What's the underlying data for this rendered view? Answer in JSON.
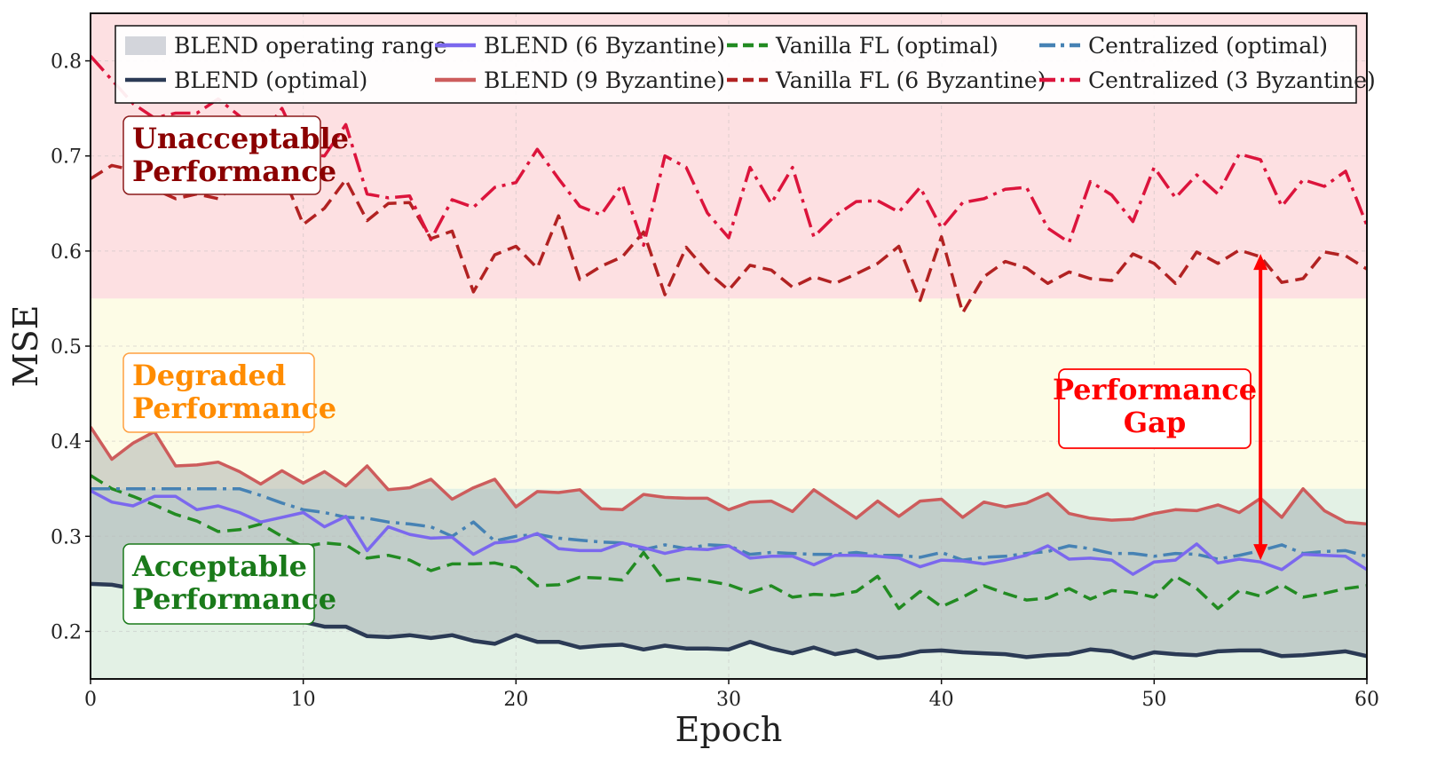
{
  "chart_data": {
    "type": "line",
    "xlabel": "Epoch",
    "ylabel": "MSE",
    "xlim": [
      0,
      60
    ],
    "ylim": [
      0.15,
      0.85
    ],
    "x_ticks": [
      0,
      10,
      20,
      30,
      40,
      50,
      60
    ],
    "y_ticks": [
      0.2,
      0.3,
      0.4,
      0.5,
      0.6,
      0.7,
      0.8
    ],
    "zones": [
      {
        "name": "Unacceptable Performance",
        "label_line1": "Unacceptable",
        "label_line2": "Performance",
        "y_range": [
          0.55,
          0.85
        ],
        "fill": "#fde0e2",
        "text_color": "#8b0000",
        "border": "#8b1a1a"
      },
      {
        "name": "Degraded Performance",
        "label_line1": "Degraded",
        "label_line2": "Performance",
        "y_range": [
          0.35,
          0.55
        ],
        "fill": "#fdfce6",
        "text_color": "#ff8c00",
        "border": "#ffa040"
      },
      {
        "name": "Acceptable Performance",
        "label_line1": "Acceptable",
        "label_line2": "Performance",
        "y_range": [
          0.15,
          0.35
        ],
        "fill": "#e3f1e5",
        "text_color": "#1a7a1a",
        "border": "#1a7a1a"
      }
    ],
    "annotation": {
      "line1": "Performance",
      "line2": "Gap",
      "x": 55,
      "y_top": 0.597,
      "y_bottom": 0.275,
      "color": "#ff0000"
    },
    "legend": {
      "placement": "top",
      "entries": [
        {
          "label": "BLEND operating range",
          "color": "#d3d5db",
          "style": "patch"
        },
        {
          "label": "BLEND (6 Byzantine)",
          "color": "#7b68ee",
          "style": "solid"
        },
        {
          "label": "Vanilla FL (optimal)",
          "color": "#228b22",
          "style": "dashed"
        },
        {
          "label": "Centralized (optimal)",
          "color": "#4682b4",
          "style": "dashdot"
        },
        {
          "label": "BLEND (optimal)",
          "color": "#2b3a55",
          "style": "solid"
        },
        {
          "label": "BLEND (9 Byzantine)",
          "color": "#cd5c5c",
          "style": "solid"
        },
        {
          "label": "Vanilla FL (6 Byzantine)",
          "color": "#b22222",
          "style": "dashed"
        },
        {
          "label": "Centralized (3 Byzantine)",
          "color": "#dc143c",
          "style": "dashdot"
        }
      ]
    },
    "x": [
      0,
      1,
      2,
      3,
      4,
      5,
      6,
      7,
      8,
      9,
      10,
      11,
      12,
      13,
      14,
      15,
      16,
      17,
      18,
      19,
      20,
      21,
      22,
      23,
      24,
      25,
      26,
      27,
      28,
      29,
      30,
      31,
      32,
      33,
      34,
      35,
      36,
      37,
      38,
      39,
      40,
      41,
      42,
      43,
      44,
      45,
      46,
      47,
      48,
      49,
      50,
      51,
      52,
      53,
      54,
      55,
      56,
      57,
      58,
      59,
      60
    ],
    "series": [
      {
        "name": "BLEND (optimal)",
        "color": "#2b3a55",
        "style": "solid",
        "width": 4.5,
        "values": [
          0.25,
          0.249,
          0.245,
          0.243,
          0.238,
          0.237,
          0.232,
          0.222,
          0.215,
          0.215,
          0.21,
          0.205,
          0.205,
          0.195,
          0.194,
          0.196,
          0.193,
          0.196,
          0.19,
          0.187,
          0.196,
          0.189,
          0.189,
          0.183,
          0.185,
          0.186,
          0.181,
          0.185,
          0.182,
          0.182,
          0.181,
          0.189,
          0.182,
          0.177,
          0.183,
          0.176,
          0.18,
          0.172,
          0.174,
          0.179,
          0.18,
          0.178,
          0.177,
          0.176,
          0.173,
          0.175,
          0.176,
          0.181,
          0.179,
          0.172,
          0.178,
          0.176,
          0.175,
          0.179,
          0.18,
          0.18,
          0.174,
          0.175,
          0.177,
          0.179,
          0.174
        ]
      },
      {
        "name": "BLEND (6 Byzantine)",
        "color": "#7b68ee",
        "style": "solid",
        "width": 3.5,
        "values": [
          0.348,
          0.336,
          0.332,
          0.342,
          0.342,
          0.328,
          0.332,
          0.325,
          0.315,
          0.32,
          0.325,
          0.31,
          0.321,
          0.285,
          0.31,
          0.302,
          0.298,
          0.299,
          0.281,
          0.293,
          0.295,
          0.303,
          0.287,
          0.285,
          0.285,
          0.293,
          0.288,
          0.282,
          0.287,
          0.286,
          0.29,
          0.277,
          0.279,
          0.279,
          0.27,
          0.28,
          0.28,
          0.279,
          0.277,
          0.268,
          0.275,
          0.274,
          0.271,
          0.275,
          0.28,
          0.29,
          0.276,
          0.277,
          0.275,
          0.26,
          0.273,
          0.275,
          0.292,
          0.272,
          0.276,
          0.273,
          0.265,
          0.281,
          0.28,
          0.279,
          0.265
        ]
      },
      {
        "name": "BLEND (9 Byzantine)",
        "color": "#cd5c5c",
        "style": "solid",
        "width": 3.5,
        "values": [
          0.415,
          0.381,
          0.398,
          0.41,
          0.374,
          0.375,
          0.378,
          0.368,
          0.355,
          0.369,
          0.356,
          0.368,
          0.353,
          0.374,
          0.349,
          0.351,
          0.36,
          0.339,
          0.351,
          0.36,
          0.331,
          0.347,
          0.346,
          0.349,
          0.329,
          0.328,
          0.344,
          0.341,
          0.34,
          0.34,
          0.328,
          0.336,
          0.337,
          0.326,
          0.349,
          0.334,
          0.319,
          0.337,
          0.321,
          0.337,
          0.339,
          0.32,
          0.336,
          0.331,
          0.335,
          0.345,
          0.324,
          0.319,
          0.317,
          0.318,
          0.324,
          0.328,
          0.327,
          0.333,
          0.325,
          0.34,
          0.32,
          0.35,
          0.327,
          0.315,
          0.313
        ]
      },
      {
        "name": "Vanilla FL (optimal)",
        "color": "#228b22",
        "style": "dashed",
        "width": 3.5,
        "values": [
          0.364,
          0.35,
          0.342,
          0.333,
          0.323,
          0.316,
          0.305,
          0.307,
          0.313,
          0.3,
          0.289,
          0.293,
          0.291,
          0.277,
          0.28,
          0.275,
          0.264,
          0.271,
          0.271,
          0.272,
          0.267,
          0.248,
          0.249,
          0.257,
          0.256,
          0.254,
          0.283,
          0.253,
          0.256,
          0.253,
          0.249,
          0.241,
          0.248,
          0.236,
          0.239,
          0.238,
          0.242,
          0.258,
          0.224,
          0.242,
          0.226,
          0.236,
          0.248,
          0.24,
          0.233,
          0.235,
          0.245,
          0.234,
          0.243,
          0.241,
          0.236,
          0.258,
          0.245,
          0.224,
          0.243,
          0.237,
          0.249,
          0.236,
          0.24,
          0.245,
          0.248
        ]
      },
      {
        "name": "Vanilla FL (6 Byzantine)",
        "color": "#b22222",
        "style": "dashed",
        "width": 3.5,
        "values": [
          0.676,
          0.69,
          0.685,
          0.665,
          0.655,
          0.66,
          0.655,
          0.672,
          0.69,
          0.683,
          0.628,
          0.645,
          0.675,
          0.632,
          0.65,
          0.651,
          0.613,
          0.621,
          0.557,
          0.596,
          0.605,
          0.582,
          0.637,
          0.57,
          0.584,
          0.594,
          0.62,
          0.554,
          0.604,
          0.578,
          0.559,
          0.585,
          0.58,
          0.562,
          0.573,
          0.566,
          0.576,
          0.587,
          0.605,
          0.548,
          0.615,
          0.535,
          0.573,
          0.589,
          0.582,
          0.566,
          0.578,
          0.571,
          0.569,
          0.597,
          0.587,
          0.566,
          0.599,
          0.587,
          0.601,
          0.594,
          0.567,
          0.571,
          0.599,
          0.595,
          0.581
        ]
      },
      {
        "name": "Centralized (optimal)",
        "color": "#4682b4",
        "style": "dashdot",
        "width": 3.5,
        "values": [
          0.35,
          0.35,
          0.35,
          0.35,
          0.35,
          0.35,
          0.35,
          0.35,
          0.343,
          0.335,
          0.328,
          0.325,
          0.32,
          0.319,
          0.315,
          0.313,
          0.31,
          0.3,
          0.315,
          0.295,
          0.3,
          0.302,
          0.298,
          0.296,
          0.294,
          0.293,
          0.286,
          0.291,
          0.287,
          0.291,
          0.29,
          0.281,
          0.283,
          0.282,
          0.281,
          0.281,
          0.283,
          0.28,
          0.28,
          0.278,
          0.283,
          0.275,
          0.278,
          0.279,
          0.282,
          0.284,
          0.29,
          0.287,
          0.282,
          0.282,
          0.279,
          0.282,
          0.281,
          0.276,
          0.28,
          0.285,
          0.291,
          0.282,
          0.284,
          0.285,
          0.279
        ]
      },
      {
        "name": "Centralized (3 Byzantine)",
        "color": "#dc143c",
        "style": "dashdot",
        "width": 3.5,
        "values": [
          0.805,
          0.78,
          0.755,
          0.74,
          0.745,
          0.745,
          0.76,
          0.742,
          0.72,
          0.75,
          0.702,
          0.7,
          0.733,
          0.66,
          0.656,
          0.658,
          0.612,
          0.654,
          0.646,
          0.667,
          0.672,
          0.707,
          0.676,
          0.647,
          0.638,
          0.67,
          0.606,
          0.7,
          0.688,
          0.64,
          0.614,
          0.688,
          0.65,
          0.688,
          0.615,
          0.637,
          0.652,
          0.653,
          0.641,
          0.667,
          0.624,
          0.651,
          0.655,
          0.665,
          0.667,
          0.624,
          0.609,
          0.673,
          0.659,
          0.631,
          0.688,
          0.656,
          0.68,
          0.66,
          0.702,
          0.696,
          0.647,
          0.675,
          0.668,
          0.684,
          0.627
        ]
      }
    ]
  }
}
